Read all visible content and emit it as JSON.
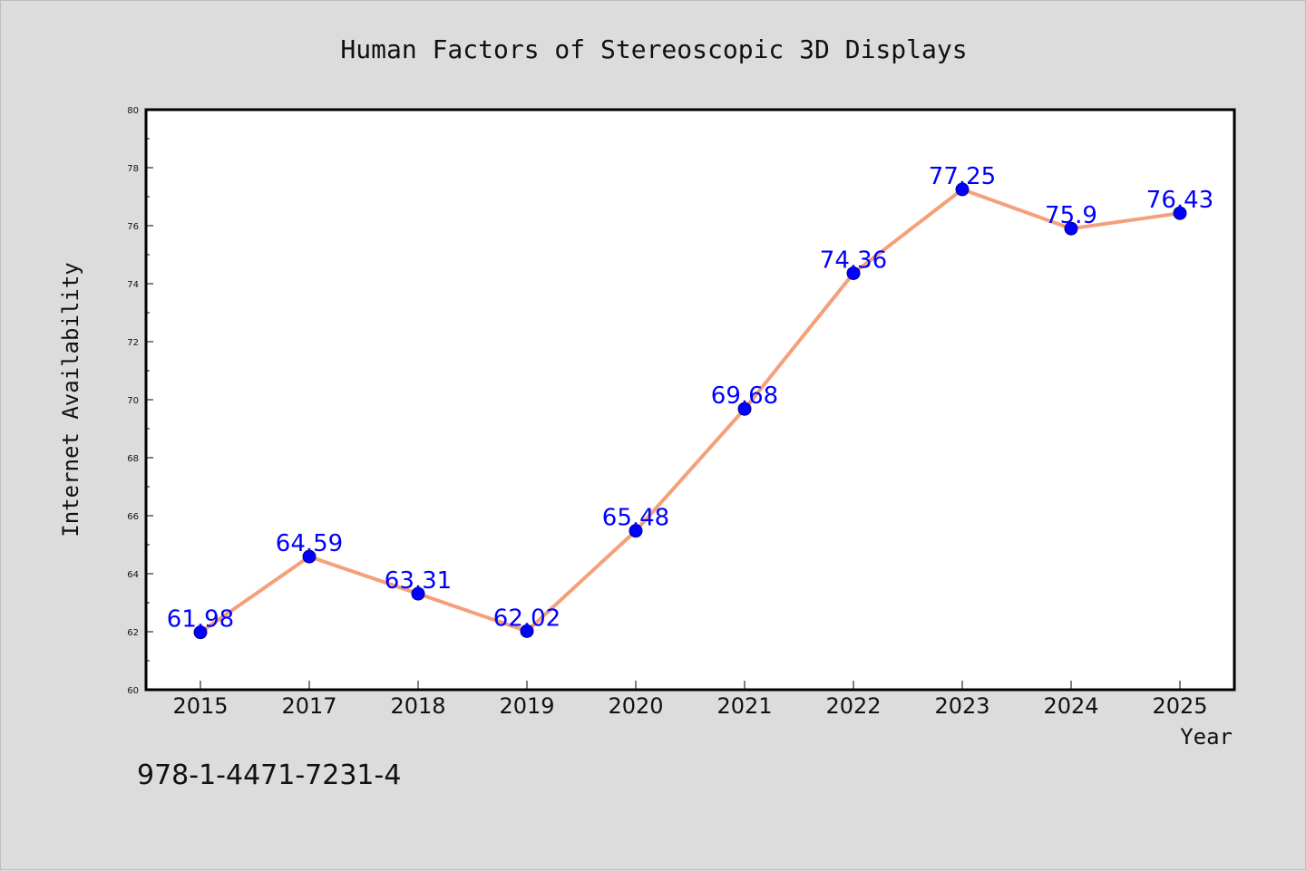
{
  "chart_data": {
    "type": "line",
    "title": "Human Factors of Stereoscopic 3D Displays",
    "xlabel": "Year",
    "ylabel": "Internet Availability",
    "categories": [
      "2015",
      "2017",
      "2018",
      "2019",
      "2020",
      "2021",
      "2022",
      "2023",
      "2024",
      "2025"
    ],
    "series": [
      {
        "values": [
          61.98,
          64.59,
          63.31,
          62.02,
          65.48,
          69.68,
          74.36,
          77.25,
          75.9,
          76.43
        ]
      }
    ],
    "data_labels": [
      "61.98",
      "64.59",
      "63.31",
      "62.02",
      "65.48",
      "69.68",
      "74.36",
      "77.25",
      "75.9",
      "76.43"
    ],
    "ylim": [
      60,
      80
    ],
    "yticks": [
      "60",
      "62",
      "64",
      "66",
      "68",
      "70",
      "72",
      "74",
      "76",
      "78",
      "80"
    ],
    "grid": false,
    "colors": {
      "line": "#f4a07a",
      "marker": "#0000ff",
      "label": "#0000ff",
      "background": "#dcdcdc",
      "plot_bg": "#ffffff"
    },
    "annotation": "978-1-4471-7231-4"
  }
}
